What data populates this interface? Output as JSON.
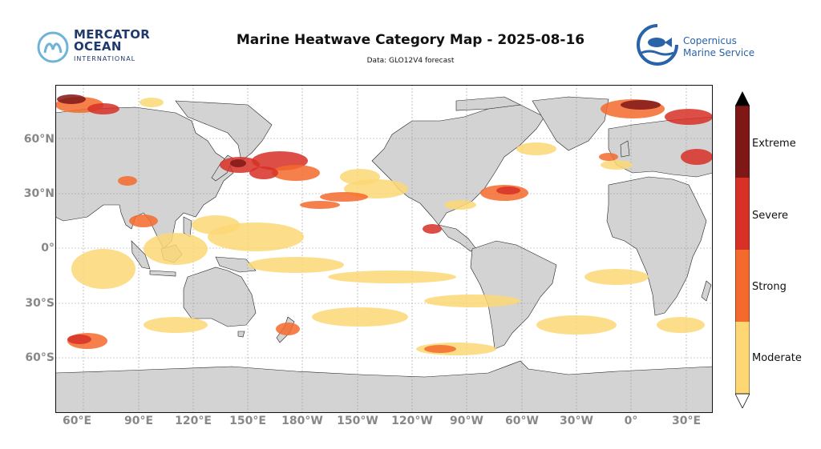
{
  "header": {
    "title": "Marine Heatwave Category Map - 2025-08-16",
    "subtitle": "Data: GLO12V4 forecast"
  },
  "logos": {
    "left": {
      "line1": "MERCATOR",
      "line2": "OCEAN",
      "line3": "INTERNATIONAL"
    },
    "right": {
      "line1": "Copernicus",
      "line2": "Marine Service"
    }
  },
  "axes": {
    "x_ticks": [
      "60°E",
      "90°E",
      "120°E",
      "150°E",
      "180°W",
      "150°W",
      "120°W",
      "90°W",
      "60°W",
      "30°W",
      "0°",
      "30°E"
    ],
    "y_ticks": [
      "60°N",
      "30°N",
      "0°",
      "30°S",
      "60°S"
    ]
  },
  "legend": {
    "categories": [
      "Moderate",
      "Strong",
      "Severe",
      "Extreme"
    ],
    "colors": {
      "Moderate": "#fcd774",
      "Strong": "#f46a2c",
      "Severe": "#d73026",
      "Extreme": "#7f1717"
    }
  },
  "colors": {
    "land": "#d3d3d3",
    "ocean": "#ffffff",
    "grid": "#999999"
  }
}
